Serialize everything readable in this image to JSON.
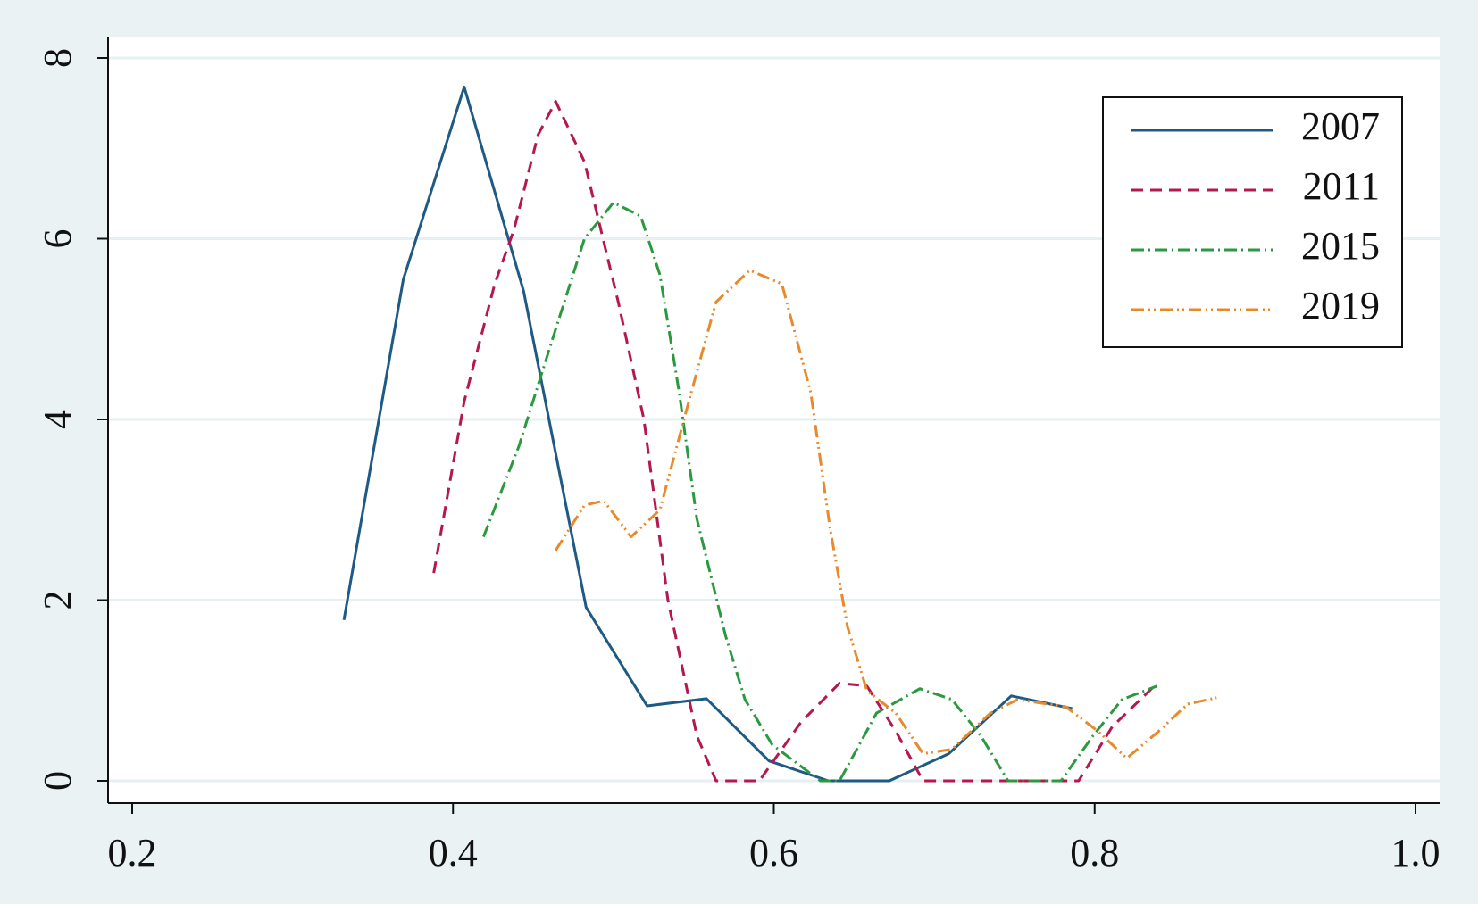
{
  "chart_data": {
    "type": "line",
    "xlim": [
      0.2,
      1.0
    ],
    "xticks": [
      0.2,
      0.4,
      0.6,
      0.8,
      {
        "value": 1.0,
        "label": "1.0"
      }
    ],
    "ylim": [
      0,
      8
    ],
    "yticks": [
      0,
      2,
      4,
      6,
      8
    ],
    "grid": true,
    "legend": "top-right",
    "series": [
      {
        "name": "2007",
        "color": "#1f5a85",
        "dash": "none",
        "x": [
          0.332,
          0.369,
          0.407,
          0.444,
          0.483,
          0.521,
          0.558,
          0.597,
          0.634,
          0.672,
          0.709,
          0.748,
          0.786
        ],
        "values": [
          1.78,
          5.55,
          7.68,
          5.42,
          1.92,
          0.83,
          0.91,
          0.22,
          0,
          0,
          0.3,
          0.94,
          0.8
        ]
      },
      {
        "name": "2011",
        "color": "#b5174f",
        "dash": "13 8",
        "x": [
          0.388,
          0.407,
          0.426,
          0.438,
          0.453,
          0.464,
          0.482,
          0.503,
          0.519,
          0.534,
          0.552,
          0.564,
          0.591,
          0.617,
          0.641,
          0.658,
          0.676,
          0.693,
          0.79,
          0.811,
          0.839
        ],
        "values": [
          2.3,
          4.2,
          5.5,
          6.1,
          7.15,
          7.52,
          6.85,
          5.3,
          4.0,
          2.0,
          0.5,
          0,
          0,
          0.65,
          1.08,
          1.05,
          0.55,
          0,
          0,
          0.6,
          1.08
        ]
      },
      {
        "name": "2015",
        "color": "#2b9a3f",
        "dash": "14 5 2 5",
        "x": [
          0.419,
          0.441,
          0.464,
          0.482,
          0.5,
          0.517,
          0.529,
          0.541,
          0.552,
          0.57,
          0.582,
          0.599,
          0.629,
          0.641,
          0.664,
          0.691,
          0.711,
          0.729,
          0.746,
          0.779,
          0.799,
          0.817,
          0.839
        ],
        "values": [
          2.7,
          3.7,
          5.0,
          6.0,
          6.4,
          6.25,
          5.6,
          4.3,
          2.9,
          1.6,
          0.9,
          0.4,
          0,
          0,
          0.75,
          1.02,
          0.9,
          0.5,
          0,
          0,
          0.5,
          0.9,
          1.05
        ]
      },
      {
        "name": "2019",
        "color": "#e8892b",
        "dash": "14 5 2 4 2 5",
        "x": [
          0.464,
          0.482,
          0.494,
          0.511,
          0.529,
          0.547,
          0.564,
          0.585,
          0.605,
          0.623,
          0.635,
          0.646,
          0.658,
          0.676,
          0.693,
          0.711,
          0.735,
          0.752,
          0.782,
          0.802,
          0.82,
          0.84,
          0.858,
          0.876
        ],
        "values": [
          2.55,
          3.05,
          3.1,
          2.7,
          3.0,
          4.2,
          5.3,
          5.65,
          5.5,
          4.3,
          2.8,
          1.7,
          1.0,
          0.75,
          0.3,
          0.35,
          0.75,
          0.9,
          0.82,
          0.55,
          0.25,
          0.55,
          0.85,
          0.92
        ]
      }
    ]
  }
}
